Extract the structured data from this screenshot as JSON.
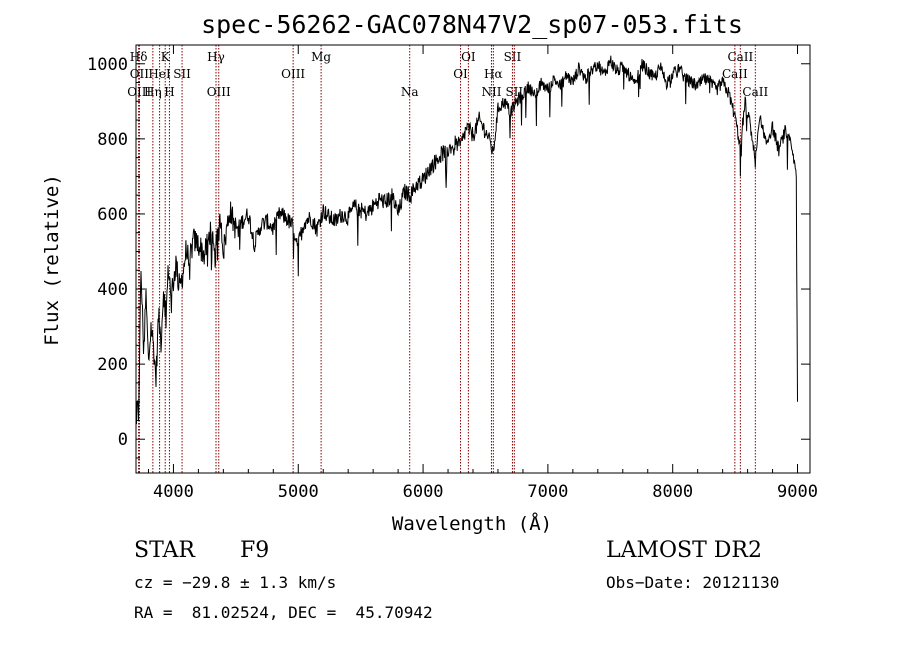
{
  "chart_data": {
    "type": "line",
    "title": "spec-56262-GAC078N47V2_sp07-053.fits",
    "xlabel": "Wavelength (Å)",
    "ylabel": "Flux (relative)",
    "xlim": [
      3700,
      9100
    ],
    "ylim": [
      -90,
      1050
    ],
    "x_ticks": [
      4000,
      5000,
      6000,
      7000,
      8000,
      9000
    ],
    "y_ticks": [
      0,
      200,
      400,
      600,
      800,
      1000
    ],
    "grid": false,
    "series": [
      {
        "color": "#000000",
        "x": [
          3700,
          3720,
          3740,
          3760,
          3780,
          3800,
          3820,
          3840,
          3860,
          3880,
          3900,
          3920,
          3940,
          3960,
          3980,
          4000,
          4020,
          4050,
          4080,
          4100,
          4130,
          4160,
          4200,
          4250,
          4300,
          4330,
          4350,
          4380,
          4400,
          4450,
          4500,
          4550,
          4600,
          4650,
          4700,
          4750,
          4800,
          4850,
          4900,
          4950,
          5000,
          5050,
          5100,
          5150,
          5200,
          5250,
          5300,
          5350,
          5400,
          5450,
          5500,
          5550,
          5600,
          5650,
          5700,
          5750,
          5800,
          5850,
          5900,
          5950,
          6000,
          6050,
          6100,
          6150,
          6200,
          6250,
          6300,
          6350,
          6400,
          6450,
          6500,
          6530,
          6562,
          6600,
          6650,
          6700,
          6750,
          6800,
          6850,
          6900,
          6950,
          7000,
          7050,
          7100,
          7150,
          7200,
          7250,
          7300,
          7350,
          7400,
          7450,
          7500,
          7550,
          7600,
          7650,
          7700,
          7750,
          7800,
          7850,
          7900,
          7950,
          8000,
          8050,
          8100,
          8150,
          8200,
          8250,
          8300,
          8350,
          8400,
          8450,
          8498,
          8542,
          8580,
          8620,
          8662,
          8700,
          8750,
          8800,
          8850,
          8900,
          8950,
          8990,
          9000
        ],
        "y": [
          100,
          60,
          450,
          250,
          380,
          200,
          300,
          250,
          160,
          330,
          260,
          400,
          330,
          460,
          390,
          420,
          470,
          400,
          450,
          500,
          480,
          530,
          520,
          490,
          560,
          480,
          530,
          590,
          500,
          610,
          560,
          580,
          600,
          520,
          570,
          580,
          560,
          600,
          590,
          570,
          520,
          580,
          590,
          560,
          610,
          590,
          580,
          600,
          590,
          620,
          610,
          600,
          620,
          640,
          630,
          650,
          600,
          660,
          650,
          680,
          690,
          720,
          740,
          760,
          770,
          790,
          780,
          830,
          810,
          850,
          820,
          800,
          760,
          880,
          900,
          870,
          900,
          920,
          940,
          910,
          950,
          930,
          960,
          940,
          970,
          950,
          990,
          960,
          980,
          1000,
          970,
          1010,
          980,
          990,
          970,
          940,
          1000,
          980,
          960,
          990,
          950,
          970,
          990,
          960,
          950,
          940,
          960,
          950,
          930,
          950,
          920,
          860,
          780,
          900,
          840,
          740,
          860,
          790,
          830,
          770,
          820,
          780,
          700,
          100
        ]
      }
    ],
    "line_markers": [
      {
        "label": "Hδ",
        "x": 3721,
        "tier": 1
      },
      {
        "label": "K",
        "x": 3934,
        "tier": 1
      },
      {
        "label": "Hγ",
        "x": 4341,
        "tier": 1
      },
      {
        "label": "Mg",
        "x": 5183,
        "tier": 1
      },
      {
        "label": "OI",
        "x": 6363,
        "tier": 1
      },
      {
        "label": "SII",
        "x": 6716,
        "tier": 1
      },
      {
        "label": "CaII",
        "x": 8542,
        "tier": 1
      },
      {
        "label": "OII",
        "x": 3727,
        "tier": 2
      },
      {
        "label": "HeI",
        "x": 3889,
        "tier": 2
      },
      {
        "label": "SII",
        "x": 4069,
        "tier": 2
      },
      {
        "label": "OIII",
        "x": 4959,
        "tier": 2
      },
      {
        "label": "OI",
        "x": 6300,
        "tier": 2
      },
      {
        "label": "Hα",
        "x": 6563,
        "tier": 2
      },
      {
        "label": "CaII",
        "x": 8498,
        "tier": 2
      },
      {
        "label": "OIII",
        "x": 3726,
        "tier": 3
      },
      {
        "label": "Hη",
        "x": 3835,
        "tier": 3
      },
      {
        "label": "H",
        "x": 3968,
        "tier": 3
      },
      {
        "label": "OIII",
        "x": 4363,
        "tier": 3
      },
      {
        "label": "Na",
        "x": 5893,
        "tier": 3
      },
      {
        "label": "NII",
        "x": 6548,
        "tier": 3
      },
      {
        "label": "SII",
        "x": 6731,
        "tier": 3
      },
      {
        "label": "CaII",
        "x": 8662,
        "tier": 3
      }
    ],
    "marker_color": "#8b0000"
  },
  "info": {
    "class_label": "STAR",
    "subclass": "F9",
    "survey": "LAMOST DR2",
    "cz": "cz = −29.8 ± 1.3 km/s",
    "obs_date": "Obs−Date: 20121130",
    "radec": "RA =  81.02524, DEC =  45.70942"
  }
}
